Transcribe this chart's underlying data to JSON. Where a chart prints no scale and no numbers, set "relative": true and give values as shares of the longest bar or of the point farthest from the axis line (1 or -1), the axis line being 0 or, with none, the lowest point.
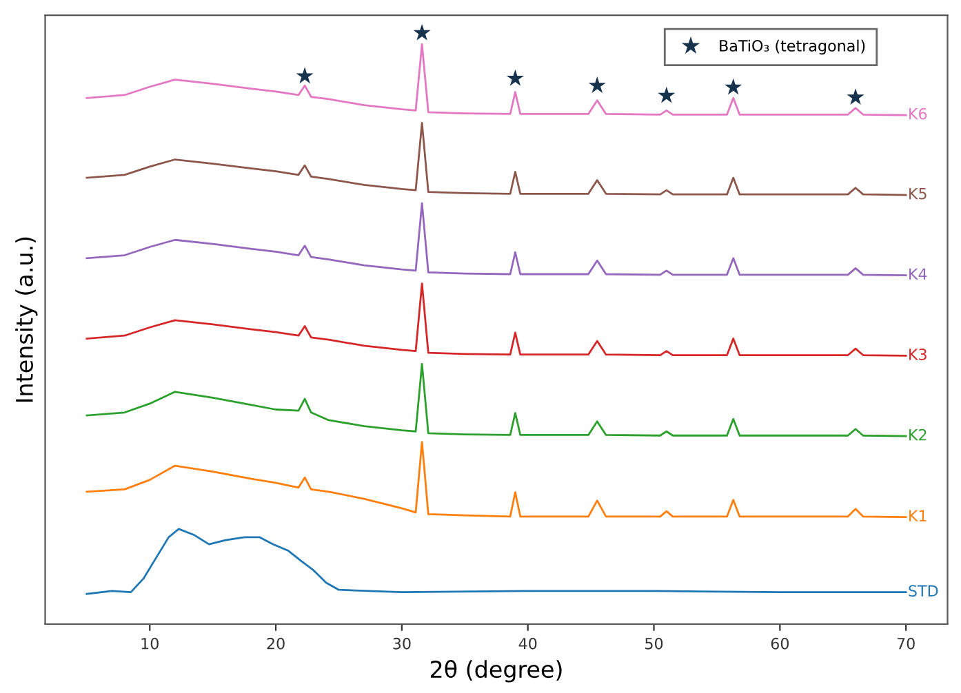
{
  "chart_data": {
    "type": "line",
    "relative": true,
    "xlabel": "2θ (degree)",
    "ylabel": "Intensity (a.u.)",
    "xlim": [
      1.7,
      73.3
    ],
    "xticks": [
      10,
      20,
      30,
      40,
      50,
      60,
      70
    ],
    "grid": false,
    "legend": "top right",
    "marker": "none",
    "line_style": "solid",
    "x": [
      5,
      8,
      10,
      12,
      15,
      18,
      20,
      21.8,
      22.3,
      22.8,
      24.2,
      27,
      30,
      31.1,
      31.6,
      32.1,
      35,
      38.6,
      39,
      39.4,
      44.8,
      45.5,
      46.2,
      50.5,
      51,
      51.5,
      55.8,
      56.3,
      56.8,
      65.4,
      66,
      66.6,
      70
    ],
    "series": [
      {
        "name": "STD",
        "color": "#1f77b4",
        "x": [
          5,
          7,
          8.5,
          9.5,
          10.5,
          11.5,
          12.3,
          13.5,
          14.7,
          16,
          17.5,
          18.7,
          19.8,
          21,
          22,
          23,
          24,
          25,
          30,
          40,
          50,
          60,
          70
        ],
        "values": [
          0.051,
          0.056,
          0.054,
          0.077,
          0.112,
          0.147,
          0.161,
          0.151,
          0.135,
          0.142,
          0.147,
          0.147,
          0.135,
          0.124,
          0.107,
          0.091,
          0.07,
          0.058,
          0.054,
          0.056,
          0.056,
          0.054,
          0.054
        ]
      },
      {
        "name": "K1",
        "color": "#ff7f0e",
        "values": [
          0.224,
          0.228,
          0.244,
          0.268,
          0.258,
          0.246,
          0.239,
          0.231,
          0.248,
          0.228,
          0.224,
          0.212,
          0.196,
          0.189,
          0.308,
          0.186,
          0.184,
          0.182,
          0.223,
          0.182,
          0.182,
          0.209,
          0.182,
          0.182,
          0.191,
          0.182,
          0.182,
          0.21,
          0.182,
          0.182,
          0.195,
          0.182,
          0.181
        ]
      },
      {
        "name": "K2",
        "color": "#2ca02c",
        "values": [
          0.353,
          0.358,
          0.373,
          0.393,
          0.383,
          0.371,
          0.363,
          0.361,
          0.381,
          0.358,
          0.345,
          0.335,
          0.328,
          0.326,
          0.44,
          0.323,
          0.321,
          0.32,
          0.357,
          0.32,
          0.32,
          0.343,
          0.32,
          0.319,
          0.326,
          0.319,
          0.319,
          0.347,
          0.319,
          0.319,
          0.33,
          0.319,
          0.318
        ]
      },
      {
        "name": "K3",
        "color": "#d62728",
        "values": [
          0.483,
          0.488,
          0.502,
          0.514,
          0.507,
          0.499,
          0.494,
          0.488,
          0.504,
          0.485,
          0.481,
          0.471,
          0.464,
          0.462,
          0.576,
          0.459,
          0.457,
          0.456,
          0.493,
          0.456,
          0.456,
          0.479,
          0.456,
          0.455,
          0.462,
          0.455,
          0.455,
          0.483,
          0.455,
          0.455,
          0.466,
          0.455,
          0.454
        ]
      },
      {
        "name": "K4",
        "color": "#9467bd",
        "values": [
          0.619,
          0.624,
          0.638,
          0.65,
          0.643,
          0.635,
          0.63,
          0.624,
          0.64,
          0.621,
          0.617,
          0.607,
          0.6,
          0.598,
          0.712,
          0.595,
          0.593,
          0.592,
          0.629,
          0.592,
          0.592,
          0.615,
          0.592,
          0.591,
          0.598,
          0.591,
          0.591,
          0.619,
          0.591,
          0.591,
          0.602,
          0.591,
          0.59
        ]
      },
      {
        "name": "K5",
        "color": "#8c564b",
        "values": [
          0.755,
          0.76,
          0.774,
          0.786,
          0.779,
          0.771,
          0.766,
          0.76,
          0.776,
          0.757,
          0.753,
          0.743,
          0.736,
          0.734,
          0.848,
          0.731,
          0.729,
          0.728,
          0.765,
          0.728,
          0.728,
          0.751,
          0.728,
          0.727,
          0.734,
          0.727,
          0.727,
          0.755,
          0.727,
          0.727,
          0.738,
          0.727,
          0.726
        ]
      },
      {
        "name": "K6",
        "color": "#e377c2",
        "values": [
          0.89,
          0.895,
          0.909,
          0.921,
          0.914,
          0.906,
          0.901,
          0.895,
          0.911,
          0.892,
          0.888,
          0.878,
          0.871,
          0.869,
          0.981,
          0.866,
          0.864,
          0.863,
          0.9,
          0.863,
          0.863,
          0.886,
          0.863,
          0.862,
          0.869,
          0.862,
          0.862,
          0.89,
          0.862,
          0.862,
          0.873,
          0.862,
          0.861
        ]
      },
      {
        "name": "BaTiO₃ (tetragonal)",
        "type": "scatter",
        "marker": "star",
        "color": "#17324d",
        "x": [
          22.3,
          31.6,
          39,
          45.5,
          51,
          56.3,
          66
        ],
        "values": [
          0.927,
          1.0,
          0.923,
          0.911,
          0.894,
          0.908,
          0.891
        ]
      }
    ]
  }
}
